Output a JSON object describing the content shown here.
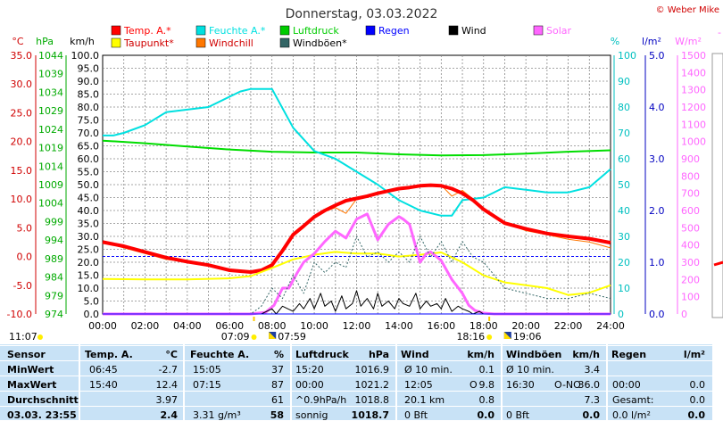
{
  "header": {
    "title": "Donnerstag, 03.03.2022",
    "copyright": "© Weber Mike"
  },
  "legend": [
    {
      "label": "Temp. A.*",
      "color": "#ff0000"
    },
    {
      "label": "Feuchte A.*",
      "color": "#00e0e0"
    },
    {
      "label": "Luftdruck",
      "color": "#00cc00"
    },
    {
      "label": "Regen",
      "color": "#0000ff"
    },
    {
      "label": "Wind",
      "color": "#000000"
    },
    {
      "label": "Solar",
      "color": "#ff66ff"
    },
    {
      "label": "Taupunkt*",
      "color": "#ffff00"
    },
    {
      "label": "Windchill",
      "color": "#ff7700"
    },
    {
      "label": "Windböen*",
      "color": "#336666"
    }
  ],
  "axis_units": {
    "temp": "°C",
    "pressure": "hPa",
    "wind": "km/h",
    "humidity": "%",
    "rain": "l/m²",
    "solar": "W/m²"
  },
  "chart_data": {
    "type": "line",
    "x_labels": [
      "00:00",
      "02:00",
      "04:00",
      "06:00",
      "08:00",
      "10:00",
      "12:00",
      "14:00",
      "16:00",
      "18:00",
      "20:00",
      "22:00",
      "24:00"
    ],
    "x_range": [
      0,
      24
    ],
    "axes": {
      "temp": {
        "unit": "°C",
        "range": [
          -10,
          35
        ],
        "ticks": [
          "35.0",
          "30.0",
          "25.0",
          "20.0",
          "15.0",
          "10.0",
          "5.0",
          "0.0",
          "-5.0",
          "-10.0"
        ]
      },
      "pressure": {
        "unit": "hPa",
        "range": [
          974,
          1044
        ],
        "ticks": [
          "1044",
          "1039",
          "1034",
          "1029",
          "1024",
          "1019",
          "1014",
          "1009",
          "1004",
          "999",
          "994",
          "989",
          "984",
          "979",
          "974"
        ]
      },
      "wind": {
        "unit": "km/h",
        "range": [
          0,
          100
        ],
        "ticks": [
          "100.0",
          "95.0",
          "90.0",
          "85.0",
          "80.0",
          "75.0",
          "70.0",
          "65.0",
          "60.0",
          "55.0",
          "50.0",
          "45.0",
          "40.0",
          "35.0",
          "30.0",
          "25.0",
          "20.0",
          "15.0",
          "10.0",
          "5.0",
          "0.0"
        ]
      },
      "humidity": {
        "unit": "%",
        "range": [
          0,
          100
        ],
        "ticks": [
          "100",
          "90",
          "80",
          "70",
          "60",
          "50",
          "40",
          "30",
          "20",
          "10",
          "0"
        ]
      },
      "rain": {
        "unit": "l/m²",
        "range": [
          0,
          5
        ],
        "ticks": [
          "5.0",
          "4.0",
          "3.0",
          "2.0",
          "1.0",
          "0.0"
        ]
      },
      "solar": {
        "unit": "W/m²",
        "range": [
          0,
          1500
        ],
        "ticks": [
          "1500",
          "1400",
          "1300",
          "1200",
          "1100",
          "1000",
          "900",
          "800",
          "700",
          "600",
          "500",
          "400",
          "300",
          "200",
          "100",
          "0"
        ]
      }
    },
    "series": [
      {
        "name": "Luftdruck",
        "axis": "pressure",
        "color": "#00dd00",
        "width": 2,
        "x": [
          0,
          2,
          4,
          6,
          8,
          10,
          12,
          14,
          16,
          18,
          20,
          22,
          24
        ],
        "y": [
          1020.9,
          1020.2,
          1019.3,
          1018.5,
          1017.9,
          1017.7,
          1017.7,
          1017.2,
          1016.9,
          1017.0,
          1017.4,
          1017.9,
          1018.3
        ]
      },
      {
        "name": "Feuchte A.*",
        "axis": "humidity",
        "color": "#00e0e0",
        "width": 2,
        "x": [
          0,
          0.5,
          1,
          2,
          3,
          4,
          5,
          6,
          6.5,
          7,
          7.5,
          8,
          9,
          10,
          11,
          12,
          13,
          14,
          15,
          16,
          16.5,
          17,
          18,
          19,
          20,
          21,
          22,
          23,
          24
        ],
        "y": [
          69,
          69,
          70,
          73,
          78,
          79,
          80,
          84,
          86,
          87,
          87,
          87,
          72,
          63,
          60,
          55,
          50,
          44,
          40,
          38,
          38,
          44,
          45,
          49,
          48,
          47,
          47,
          49,
          56
        ]
      },
      {
        "name": "Windchill",
        "axis": "temp",
        "color": "#ff7700",
        "width": 1,
        "x": [
          0,
          1,
          2,
          3,
          4,
          5,
          6,
          7,
          7.5,
          8,
          8.5,
          9,
          9.5,
          10,
          10.5,
          11,
          11.5,
          12,
          12.5,
          13,
          13.5,
          14,
          14.5,
          15,
          15.5,
          16,
          16.5,
          17,
          17.5,
          18,
          19,
          20,
          21,
          22,
          23,
          24
        ],
        "y": [
          2.5,
          1.5,
          0.5,
          -0.5,
          -1.0,
          -1.7,
          -2.5,
          -2.7,
          -2.5,
          -1.8,
          1.0,
          3.5,
          5.0,
          6.8,
          7.8,
          8.5,
          7.5,
          10.0,
          10.5,
          11.2,
          11.2,
          11.8,
          11.8,
          12.2,
          12.3,
          12.4,
          10.5,
          11.5,
          10.0,
          8.2,
          5.8,
          4.5,
          3.8,
          3.0,
          2.5,
          1.5
        ]
      },
      {
        "name": "Temp. A.*",
        "axis": "temp",
        "color": "#ff0000",
        "width": 4,
        "x": [
          0,
          1,
          2,
          3,
          4,
          5,
          6,
          7,
          7.5,
          8,
          8.5,
          9,
          9.5,
          10,
          10.5,
          11,
          11.5,
          12,
          12.5,
          13,
          13.5,
          14,
          14.5,
          15,
          15.5,
          16,
          16.5,
          17,
          17.5,
          18,
          19,
          20,
          21,
          22,
          23,
          24
        ],
        "y": [
          2.5,
          1.8,
          0.8,
          -0.2,
          -0.9,
          -1.5,
          -2.4,
          -2.7,
          -2.4,
          -1.5,
          1.0,
          3.8,
          5.3,
          6.9,
          8.0,
          8.9,
          9.7,
          10.1,
          10.5,
          11.0,
          11.4,
          11.8,
          12.0,
          12.3,
          12.4,
          12.3,
          11.8,
          11.0,
          9.8,
          8.2,
          5.8,
          4.8,
          4.0,
          3.5,
          3.1,
          2.4
        ]
      },
      {
        "name": "Taupunkt*",
        "axis": "temp",
        "color": "#ffff00",
        "width": 2,
        "x": [
          0,
          2,
          4,
          6,
          7,
          8,
          9,
          10,
          11,
          12,
          13,
          14,
          15,
          16,
          17,
          18,
          19,
          20,
          21,
          22,
          23,
          24
        ],
        "y": [
          -3.9,
          -4.0,
          -4.0,
          -3.8,
          -3.4,
          -2.0,
          -0.5,
          0.3,
          0.8,
          0.5,
          0.5,
          0.0,
          0.3,
          0.7,
          -1.0,
          -3.3,
          -4.5,
          -5.0,
          -5.5,
          -6.7,
          -6.3,
          -5.0
        ]
      },
      {
        "name": "Solar",
        "axis": "solar",
        "color": "#ff66ff",
        "width": 3,
        "x": [
          0,
          7,
          7.7,
          8.1,
          8.5,
          8.8,
          9.2,
          9.5,
          10,
          10.5,
          11,
          11.5,
          12,
          12.5,
          13,
          13.5,
          14,
          14.2,
          14.5,
          15,
          15.3,
          15.5,
          16,
          16.5,
          17,
          17.3,
          17.6,
          18,
          18.5,
          24
        ],
        "y": [
          0,
          0,
          10,
          50,
          150,
          150,
          240,
          300,
          350,
          420,
          480,
          440,
          550,
          580,
          430,
          520,
          565,
          550,
          520,
          300,
          350,
          360,
          310,
          200,
          120,
          50,
          20,
          5,
          0,
          0
        ]
      },
      {
        "name": "Windböen*",
        "axis": "wind",
        "color": "#336666",
        "width": 1,
        "dash": true,
        "x": [
          0,
          6,
          7,
          7.5,
          8,
          8.5,
          9,
          9.5,
          10,
          10.5,
          11,
          11.5,
          12,
          12.5,
          13,
          13.5,
          14,
          14.5,
          15,
          15.5,
          16,
          16.5,
          17,
          17.5,
          18,
          19,
          20,
          21,
          22,
          23,
          24
        ],
        "y": [
          0,
          0,
          0,
          3,
          10,
          6,
          15,
          8,
          20,
          16,
          20,
          18,
          30,
          22,
          24,
          20,
          24,
          20,
          30,
          22,
          28,
          20,
          28,
          22,
          20,
          10,
          8,
          6,
          6,
          8,
          6
        ]
      },
      {
        "name": "Wind",
        "axis": "wind",
        "color": "#000000",
        "width": 1,
        "x": [
          0,
          7,
          7.5,
          8,
          8.2,
          8.5,
          9,
          9.3,
          9.5,
          9.8,
          10,
          10.3,
          10.5,
          10.8,
          11,
          11.3,
          11.5,
          11.8,
          12,
          12.2,
          12.5,
          12.8,
          13,
          13.2,
          13.5,
          13.8,
          14,
          14.2,
          14.5,
          14.8,
          15,
          15.3,
          15.5,
          15.8,
          16,
          16.2,
          16.5,
          16.8,
          17,
          17.3,
          17.5,
          17.8,
          18,
          24
        ],
        "y": [
          0,
          0,
          0,
          2,
          0,
          3,
          1,
          4,
          2,
          6,
          2,
          8,
          3,
          5,
          1,
          7,
          2,
          4,
          9,
          3,
          6,
          2,
          8,
          3,
          5,
          2,
          6,
          4,
          3,
          8,
          2,
          5,
          3,
          4,
          2,
          6,
          1,
          3,
          2,
          1,
          0,
          1,
          0,
          0
        ]
      },
      {
        "name": "Regen",
        "axis": "rain",
        "color": "#0000ff",
        "width": 1,
        "x": [
          0,
          24
        ],
        "y": [
          0,
          0
        ]
      }
    ],
    "time_markers": [
      {
        "label": "11:07",
        "x": 0
      },
      {
        "label": "07:09",
        "x": 7.15
      },
      {
        "label": "07:59",
        "x": 7.98
      },
      {
        "label": "18:16",
        "x": 18.27
      },
      {
        "label": "19:06",
        "x": 19.1
      }
    ]
  },
  "summary": {
    "columns": [
      "Sensor",
      "Temp. A.",
      "°C",
      "Feuchte A.",
      "%",
      "Luftdruck",
      "hPa",
      "Wind",
      "km/h",
      "Windböen",
      "km/h",
      "Regen",
      "l/m²"
    ],
    "rows": [
      {
        "label": "MinWert",
        "temp_time": "06:45",
        "temp": "-2.7",
        "hum_time": "15:05",
        "hum": "37",
        "press_time": "15:20",
        "press": "1016.9",
        "wind_label": "Ø 10 min.",
        "wind": "0.1",
        "gust_label": "Ø 10 min.",
        "gust": "3.4",
        "rain_label": "",
        "rain": ""
      },
      {
        "label": "MaxWert",
        "temp_time": "15:40",
        "temp": "12.4",
        "hum_time": "07:15",
        "hum": "87",
        "press_time": "00:00",
        "press": "1021.2",
        "wind_label": "12:05",
        "wind_dir": "O",
        "wind": "9.8",
        "gust_label": "16:30",
        "gust_dir": "O-NO",
        "gust": "36.0",
        "rain_label": "00:00",
        "rain": "0.0"
      },
      {
        "label": "Durchschnitt",
        "temp_time": "",
        "temp": "3.97",
        "hum_time": "",
        "hum": "61",
        "press_time": "^0.9hPa/h",
        "press": "1018.8",
        "wind_label": "20.1 km",
        "wind": "0.8",
        "gust_label": "",
        "gust": "7.3",
        "rain_label": "Gesamt:",
        "rain": "0.0"
      },
      {
        "label": "03.03. 23:55",
        "temp_time": "",
        "temp": "2.4",
        "hum_time": "3.31 g/m³",
        "hum": "58",
        "press_time": "sonnig",
        "press": "1018.7",
        "wind_label": "0 Bft",
        "wind": "0.0",
        "gust_label": "0 Bft",
        "gust": "0.0",
        "rain_label": "0.0 l/m²",
        "rain": "0.0"
      }
    ]
  }
}
